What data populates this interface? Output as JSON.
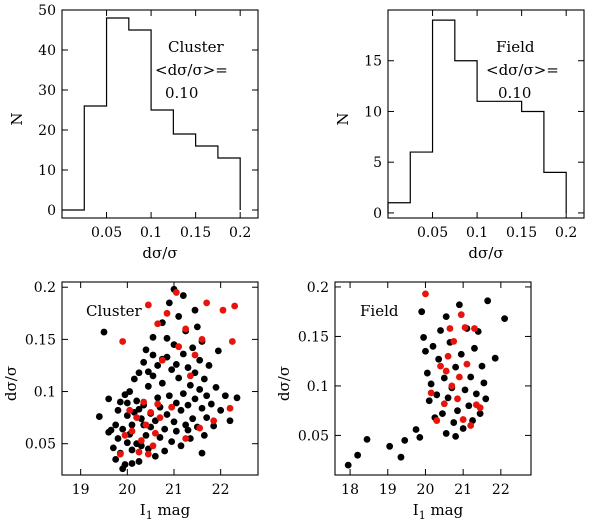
{
  "chart_data": [
    {
      "id": "hist-cluster",
      "type": "histogram",
      "xlabel": "dσ/σ",
      "ylabel": "N",
      "xlim": [
        0,
        0.22
      ],
      "ylim": [
        -2,
        50
      ],
      "xticks": [
        0.05,
        0.1,
        0.15,
        0.2
      ],
      "xtick_labels": [
        "0.05",
        "0.1",
        "0.15",
        "0.2"
      ],
      "yticks": [
        0,
        10,
        20,
        30,
        40,
        50
      ],
      "ytick_labels": [
        "0",
        "10",
        "20",
        "30",
        "40",
        "50"
      ],
      "bin_edges": [
        0,
        0.025,
        0.05,
        0.075,
        0.1,
        0.125,
        0.15,
        0.175,
        0.2
      ],
      "counts": [
        0,
        26,
        48,
        45,
        25,
        19,
        16,
        13
      ],
      "annotation": {
        "name": "Cluster",
        "stat": "<dσ/σ>=",
        "value": "0.10"
      }
    },
    {
      "id": "hist-field",
      "type": "histogram",
      "xlabel": "dσ/σ",
      "ylabel": "N",
      "xlim": [
        0,
        0.22
      ],
      "ylim": [
        -0.5,
        20
      ],
      "xticks": [
        0.05,
        0.1,
        0.15,
        0.2
      ],
      "xtick_labels": [
        "0.05",
        "0.1",
        "0.15",
        "0.2"
      ],
      "yticks": [
        0,
        5,
        10,
        15
      ],
      "ytick_labels": [
        "0",
        "5",
        "10",
        "15"
      ],
      "bin_edges": [
        0,
        0.025,
        0.05,
        0.075,
        0.1,
        0.125,
        0.15,
        0.175,
        0.2
      ],
      "counts": [
        1,
        6,
        19,
        15,
        11,
        11,
        10,
        4
      ],
      "annotation": {
        "name": "Field",
        "stat": "<dσ/σ>=",
        "value": "0.10"
      }
    },
    {
      "id": "scatter-cluster",
      "type": "scatter",
      "xlabel": "I",
      "xlabel_sub": "1",
      "xlabel_suffix": " mag",
      "ylabel": "dσ/σ",
      "xlim": [
        18.6,
        22.8
      ],
      "ylim": [
        0.02,
        0.205
      ],
      "xticks": [
        19,
        20,
        21,
        22
      ],
      "xtick_labels": [
        "19",
        "20",
        "21",
        "22"
      ],
      "yticks": [
        0.05,
        0.1,
        0.15,
        0.2
      ],
      "ytick_labels": [
        "0.05",
        "0.1",
        "0.15",
        "0.2"
      ],
      "label": "Cluster",
      "series": [
        {
          "name": "black",
          "color": "#000000",
          "points": [
            [
              19.4,
              0.076
            ],
            [
              19.5,
              0.157
            ],
            [
              19.6,
              0.093
            ],
            [
              19.6,
              0.061
            ],
            [
              19.65,
              0.063
            ],
            [
              19.7,
              0.046
            ],
            [
              19.75,
              0.068
            ],
            [
              19.8,
              0.082
            ],
            [
              19.8,
              0.055
            ],
            [
              19.85,
              0.041
            ],
            [
              19.85,
              0.09
            ],
            [
              19.9,
              0.026
            ],
            [
              19.9,
              0.064
            ],
            [
              19.95,
              0.097
            ],
            [
              19.95,
              0.03
            ],
            [
              20.0,
              0.077
            ],
            [
              20.0,
              0.051
            ],
            [
              20.05,
              0.1
            ],
            [
              20.05,
              0.059
            ],
            [
              20.1,
              0.044
            ],
            [
              20.1,
              0.068
            ],
            [
              20.15,
              0.08
            ],
            [
              20.15,
              0.112
            ],
            [
              20.2,
              0.05
            ],
            [
              20.2,
              0.091
            ],
            [
              20.25,
              0.118
            ],
            [
              20.25,
              0.033
            ],
            [
              20.3,
              0.074
            ],
            [
              20.3,
              0.048
            ],
            [
              20.35,
              0.087
            ],
            [
              20.35,
              0.128
            ],
            [
              20.4,
              0.058
            ],
            [
              20.4,
              0.14
            ],
            [
              20.45,
              0.045
            ],
            [
              20.45,
              0.105
            ],
            [
              20.5,
              0.079
            ],
            [
              20.5,
              0.066
            ],
            [
              20.55,
              0.115
            ],
            [
              20.55,
              0.152
            ],
            [
              20.6,
              0.038
            ],
            [
              20.6,
              0.072
            ],
            [
              20.65,
              0.094
            ],
            [
              20.65,
              0.125
            ],
            [
              20.7,
              0.056
            ],
            [
              20.7,
              0.085
            ],
            [
              20.75,
              0.166
            ],
            [
              20.75,
              0.108
            ],
            [
              20.8,
              0.043
            ],
            [
              20.8,
              0.064
            ],
            [
              20.85,
              0.133
            ],
            [
              20.85,
              0.078
            ],
            [
              20.9,
              0.185
            ],
            [
              20.9,
              0.096
            ],
            [
              20.95,
              0.052
            ],
            [
              20.95,
              0.121
            ],
            [
              21.0,
              0.071
            ],
            [
              21.0,
              0.145
            ],
            [
              21.05,
              0.089
            ],
            [
              21.05,
              0.062
            ],
            [
              21.1,
              0.172
            ],
            [
              21.1,
              0.113
            ],
            [
              21.15,
              0.048
            ],
            [
              21.15,
              0.082
            ],
            [
              21.2,
              0.136
            ],
            [
              21.2,
              0.098
            ],
            [
              21.25,
              0.068
            ],
            [
              21.25,
              0.158
            ],
            [
              21.3,
              0.123
            ],
            [
              21.3,
              0.087
            ],
            [
              21.35,
              0.106
            ],
            [
              21.35,
              0.055
            ],
            [
              21.4,
              0.142
            ],
            [
              21.4,
              0.074
            ],
            [
              21.45,
              0.118
            ],
            [
              21.45,
              0.093
            ],
            [
              21.5,
              0.162
            ],
            [
              21.5,
              0.066
            ],
            [
              21.55,
              0.102
            ],
            [
              21.55,
              0.13
            ],
            [
              21.6,
              0.084
            ],
            [
              21.6,
              0.148
            ],
            [
              21.65,
              0.058
            ],
            [
              21.65,
              0.112
            ],
            [
              21.7,
              0.096
            ],
            [
              21.7,
              0.075
            ],
            [
              21.75,
              0.125
            ],
            [
              21.8,
              0.088
            ],
            [
              21.85,
              0.067
            ],
            [
              21.9,
              0.104
            ],
            [
              21.95,
              0.139
            ],
            [
              22.0,
              0.082
            ],
            [
              22.1,
              0.096
            ],
            [
              22.2,
              0.072
            ],
            [
              22.35,
              0.094
            ],
            [
              20.0,
              0.089
            ],
            [
              20.35,
              0.068
            ],
            [
              20.75,
              0.131
            ],
            [
              21.0,
              0.198
            ],
            [
              21.2,
              0.192
            ],
            [
              21.45,
              0.178
            ],
            [
              20.55,
              0.135
            ],
            [
              20.25,
              0.083
            ],
            [
              20.85,
              0.151
            ],
            [
              21.3,
              0.063
            ],
            [
              19.75,
              0.035
            ],
            [
              20.1,
              0.031
            ],
            [
              20.45,
              0.119
            ],
            [
              21.05,
              0.126
            ],
            [
              21.6,
              0.041
            ]
          ]
        },
        {
          "name": "red",
          "color": "#e8140c",
          "points": [
            [
              19.85,
              0.04
            ],
            [
              19.95,
              0.058
            ],
            [
              20.05,
              0.082
            ],
            [
              20.1,
              0.062
            ],
            [
              20.2,
              0.075
            ],
            [
              20.25,
              0.042
            ],
            [
              20.3,
              0.053
            ],
            [
              20.35,
              0.09
            ],
            [
              20.4,
              0.068
            ],
            [
              20.45,
              0.04
            ],
            [
              20.5,
              0.08
            ],
            [
              20.55,
              0.048
            ],
            [
              20.6,
              0.06
            ],
            [
              20.65,
              0.088
            ],
            [
              20.7,
              0.075
            ],
            [
              20.75,
              0.13
            ],
            [
              20.85,
              0.175
            ],
            [
              20.95,
              0.085
            ],
            [
              21.05,
              0.195
            ],
            [
              21.1,
              0.143
            ],
            [
              21.25,
              0.16
            ],
            [
              21.35,
              0.115
            ],
            [
              21.45,
              0.135
            ],
            [
              21.55,
              0.065
            ],
            [
              21.6,
              0.15
            ],
            [
              21.7,
              0.185
            ],
            [
              21.85,
              0.072
            ],
            [
              22.05,
              0.178
            ],
            [
              22.25,
              0.148
            ],
            [
              22.3,
              0.182
            ],
            [
              22.2,
              0.084
            ],
            [
              21.25,
              0.055
            ],
            [
              20.65,
              0.165
            ],
            [
              20.45,
              0.183
            ],
            [
              19.9,
              0.148
            ]
          ]
        }
      ]
    },
    {
      "id": "scatter-field",
      "type": "scatter",
      "xlabel": "I",
      "xlabel_sub": "1",
      "xlabel_suffix": " mag",
      "ylabel": "dσ/σ",
      "xlim": [
        17.6,
        22.8
      ],
      "ylim": [
        0.01,
        0.205
      ],
      "xticks": [
        18,
        19,
        20,
        21,
        22
      ],
      "xtick_labels": [
        "18",
        "19",
        "20",
        "21",
        "22"
      ],
      "yticks": [
        0.05,
        0.1,
        0.15,
        0.2
      ],
      "ytick_labels": [
        "0.05",
        "0.1",
        "0.15",
        "0.2"
      ],
      "label": "Field",
      "series": [
        {
          "name": "black",
          "color": "#000000",
          "points": [
            [
              17.95,
              0.02
            ],
            [
              18.2,
              0.03
            ],
            [
              18.45,
              0.046
            ],
            [
              19.05,
              0.039
            ],
            [
              19.35,
              0.028
            ],
            [
              19.45,
              0.045
            ],
            [
              19.75,
              0.056
            ],
            [
              19.85,
              0.048
            ],
            [
              19.9,
              0.175
            ],
            [
              19.95,
              0.149
            ],
            [
              20.0,
              0.135
            ],
            [
              20.05,
              0.113
            ],
            [
              20.1,
              0.085
            ],
            [
              20.15,
              0.102
            ],
            [
              20.2,
              0.14
            ],
            [
              20.25,
              0.068
            ],
            [
              20.3,
              0.091
            ],
            [
              20.35,
              0.127
            ],
            [
              20.4,
              0.156
            ],
            [
              20.45,
              0.072
            ],
            [
              20.5,
              0.108
            ],
            [
              20.55,
              0.052
            ],
            [
              20.6,
              0.088
            ],
            [
              20.65,
              0.144
            ],
            [
              20.7,
              0.098
            ],
            [
              20.75,
              0.063
            ],
            [
              20.8,
              0.119
            ],
            [
              20.85,
              0.075
            ],
            [
              20.9,
              0.182
            ],
            [
              20.95,
              0.132
            ],
            [
              21.0,
              0.057
            ],
            [
              21.05,
              0.096
            ],
            [
              21.1,
              0.158
            ],
            [
              21.15,
              0.08
            ],
            [
              21.2,
              0.109
            ],
            [
              21.25,
              0.065
            ],
            [
              21.3,
              0.138
            ],
            [
              21.35,
              0.092
            ],
            [
              21.4,
              0.155
            ],
            [
              21.45,
              0.072
            ],
            [
              21.5,
              0.12
            ],
            [
              21.55,
              0.103
            ],
            [
              21.6,
              0.087
            ],
            [
              21.65,
              0.186
            ],
            [
              21.85,
              0.128
            ],
            [
              22.1,
              0.168
            ],
            [
              20.55,
              0.17
            ],
            [
              20.8,
              0.049
            ]
          ]
        },
        {
          "name": "red",
          "color": "#e8140c",
          "points": [
            [
              20.0,
              0.193
            ],
            [
              20.15,
              0.093
            ],
            [
              20.3,
              0.065
            ],
            [
              20.4,
              0.12
            ],
            [
              20.5,
              0.082
            ],
            [
              20.6,
              0.13
            ],
            [
              20.7,
              0.1
            ],
            [
              20.75,
              0.145
            ],
            [
              20.85,
              0.087
            ],
            [
              20.9,
              0.109
            ],
            [
              20.95,
              0.172
            ],
            [
              21.0,
              0.066
            ],
            [
              21.05,
              0.159
            ],
            [
              21.1,
              0.122
            ],
            [
              21.2,
              0.06
            ],
            [
              21.3,
              0.158
            ],
            [
              21.35,
              0.081
            ],
            [
              21.45,
              0.078
            ],
            [
              20.55,
              0.115
            ],
            [
              20.65,
              0.158
            ]
          ]
        }
      ]
    }
  ]
}
